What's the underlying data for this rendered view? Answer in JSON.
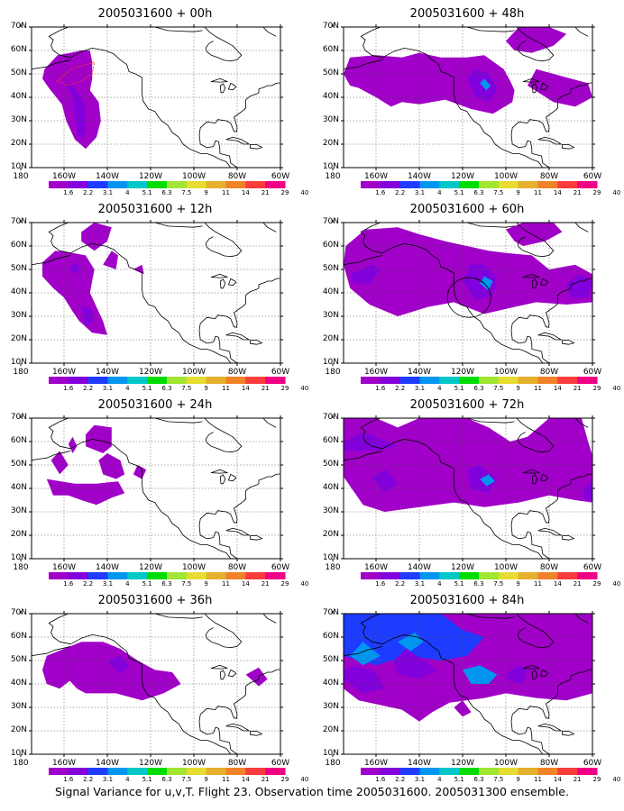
{
  "panels": [
    {
      "title": "2005031600 + 00h"
    },
    {
      "title": "2005031600 + 48h"
    },
    {
      "title": "2005031600 + 12h"
    },
    {
      "title": "2005031600 + 60h"
    },
    {
      "title": "2005031600 + 24h"
    },
    {
      "title": "2005031600 + 72h"
    },
    {
      "title": "2005031600 + 36h"
    },
    {
      "title": "2005031600 + 84h"
    }
  ],
  "lat_labels": [
    "70N",
    "60N",
    "50N",
    "40N",
    "30N",
    "20N",
    "10N"
  ],
  "lon_labels": [
    "180",
    "160W",
    "140W",
    "120W",
    "100W",
    "80W",
    "60W"
  ],
  "colorbar": {
    "labels": [
      "1.6",
      "2.2",
      "3.1",
      "4",
      "5.1",
      "6.3",
      "7.5",
      "9",
      "11",
      "14",
      "21",
      "29",
      "40"
    ],
    "colors": [
      "#a000c8",
      "#8200dc",
      "#1e3cff",
      "#0096f0",
      "#00c8c8",
      "#00dc00",
      "#a0e632",
      "#e6dc32",
      "#e6af2d",
      "#f08228",
      "#fa3c3c",
      "#f00082"
    ]
  },
  "caption": "Signal Variance for u,v,T. Flight 23. Observation time 2005031600. 2005031300 ensemble."
}
